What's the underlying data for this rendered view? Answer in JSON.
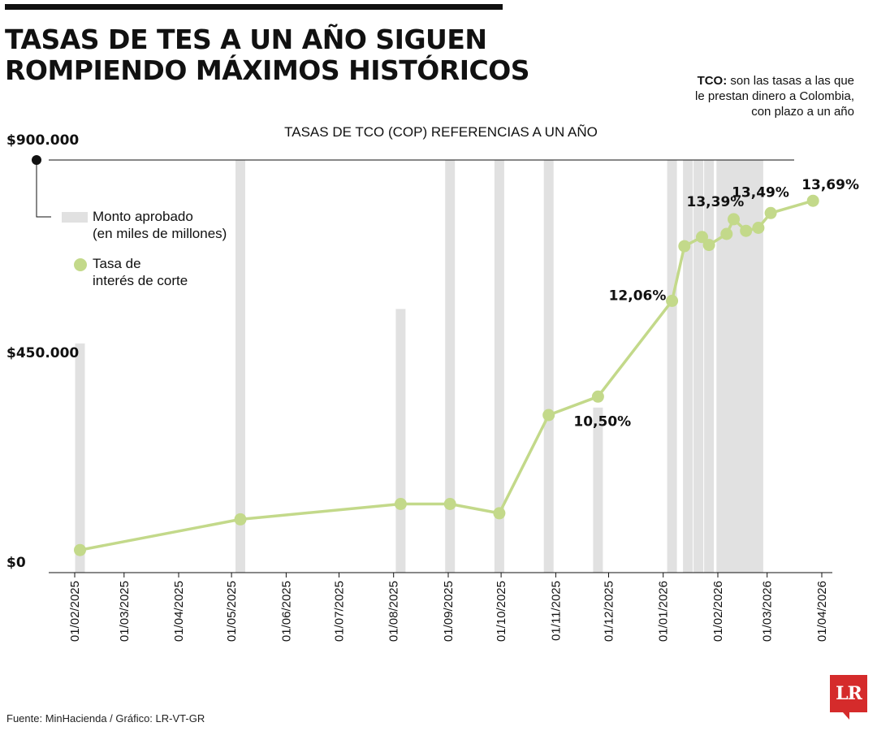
{
  "header": {
    "title_line1": "TASAS DE TES A UN AÑO SIGUEN",
    "title_line2": "ROMPIENDO MÁXIMOS HISTÓRICOS"
  },
  "note": {
    "term": "TCO:",
    "line1": "son las tasas a las que",
    "line2": "le prestan dinero a Colombia,",
    "line3": "con plazo a un año"
  },
  "footer": {
    "source": "Fuente: MinHacienda / Gráfico: LR-VT-GR",
    "logo": "LR"
  },
  "colors": {
    "bar": "#e1e1e1",
    "line": "#c3d98a",
    "axis": "#111111",
    "logo": "#d52b2b"
  },
  "chart_data": {
    "type": "bar+line",
    "subtitle": "TASAS DE TCO (COP) REFERENCIAS A UN AÑO",
    "y_tick_labels": [
      "$900.000",
      "$450.000",
      "$0"
    ],
    "y_ticks": [
      900000,
      450000,
      0
    ],
    "ylim": [
      0,
      900000
    ],
    "x_tick_labels": [
      "01/02/2025",
      "01/03/2025",
      "01/04/2025",
      "01/05/2025",
      "01/06/2025",
      "01/07/2025",
      "01/08/2025",
      "01/09/2025",
      "01/10/2025",
      "01/11/2025",
      "01/12/2025",
      "01/01/2026",
      "01/02/2026",
      "01/03/2026",
      "01/04/2026"
    ],
    "legend": {
      "bars": [
        "Monto aprobado",
        "(en miles de millones)"
      ],
      "points": [
        "Tasa de",
        "interés de corte"
      ]
    },
    "bars": [
      {
        "date": "2025-02-04",
        "value": 500000
      },
      {
        "date": "2025-05-06",
        "value": 900000
      },
      {
        "date": "2025-08-05",
        "value": 575000
      },
      {
        "date": "2025-09-02",
        "value": 900000
      },
      {
        "date": "2025-09-30",
        "value": 900000
      },
      {
        "date": "2025-10-28",
        "value": 900000
      },
      {
        "date": "2025-11-25",
        "value": 360000
      },
      {
        "date": "2026-01-06",
        "value": 900000
      },
      {
        "date": "2026-01-15",
        "value": 900000
      },
      {
        "date": "2026-01-21",
        "value": 900000
      },
      {
        "date": "2026-01-27",
        "value": 900000
      },
      {
        "date": "2026-02-03",
        "value": 900000
      },
      {
        "date": "2026-02-06",
        "value": 900000
      },
      {
        "date": "2026-02-10",
        "value": 900000
      },
      {
        "date": "2026-02-13",
        "value": 900000
      },
      {
        "date": "2026-02-17",
        "value": 900000
      },
      {
        "date": "2026-02-20",
        "value": 900000
      },
      {
        "date": "2026-02-24",
        "value": 900000
      }
    ],
    "rate_points": [
      {
        "date": "2025-02-04",
        "rate": 8.0,
        "label": ""
      },
      {
        "date": "2025-05-06",
        "rate": 8.5,
        "label": ""
      },
      {
        "date": "2025-08-05",
        "rate": 8.75,
        "label": ""
      },
      {
        "date": "2025-09-02",
        "rate": 8.75,
        "label": ""
      },
      {
        "date": "2025-09-30",
        "rate": 8.6,
        "label": ""
      },
      {
        "date": "2025-10-28",
        "rate": 10.2,
        "label": ""
      },
      {
        "date": "2025-11-25",
        "rate": 10.5,
        "label": "10,50%"
      },
      {
        "date": "2026-01-06",
        "rate": 12.06,
        "label": "12,06%"
      },
      {
        "date": "2026-01-13",
        "rate": 12.95,
        "label": ""
      },
      {
        "date": "2026-01-23",
        "rate": 13.1,
        "label": ""
      },
      {
        "date": "2026-01-27",
        "rate": 12.97,
        "label": ""
      },
      {
        "date": "2026-02-06",
        "rate": 13.15,
        "label": ""
      },
      {
        "date": "2026-02-10",
        "rate": 13.39,
        "label": "13,39%"
      },
      {
        "date": "2026-02-17",
        "rate": 13.2,
        "label": ""
      },
      {
        "date": "2026-02-24",
        "rate": 13.25,
        "label": ""
      },
      {
        "date": "2026-03-03",
        "rate": 13.49,
        "label": "13,49%"
      },
      {
        "date": "2026-03-27",
        "rate": 13.69,
        "label": "13,69%"
      }
    ]
  }
}
